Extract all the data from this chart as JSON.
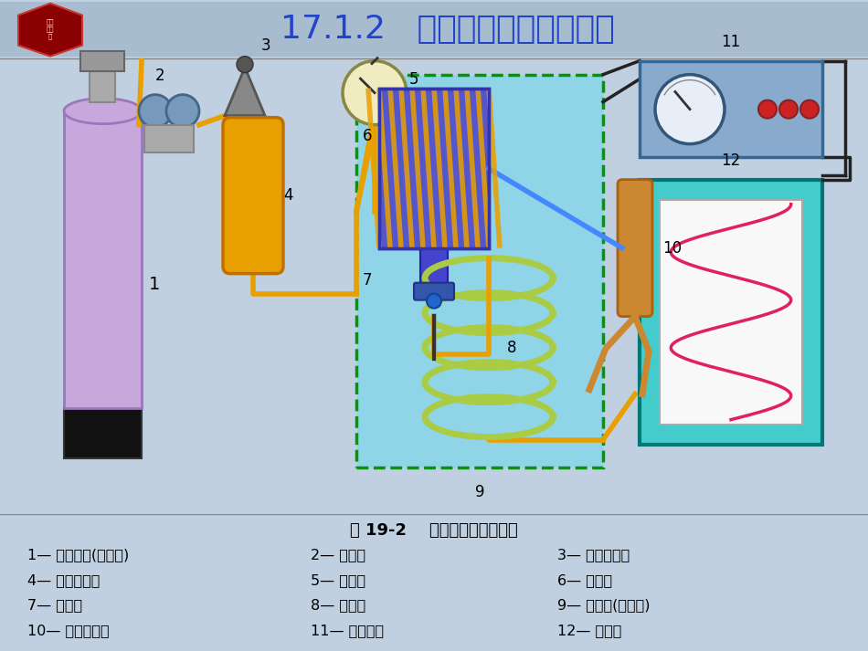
{
  "title": "17.1.2   气相色谱仪的一般流程",
  "title_color": "#2244CC",
  "bg_color": "#C0D0E0",
  "header_bg": "#A8BCD0",
  "diagram_bg": "#D8E4EE",
  "legend_bg": "#D8E0E8",
  "legend_title": "图 19-2    气相色谱流程示意图",
  "legend_items": [
    [
      "1— 高压气瓶(载气源)",
      "2— 减压阀",
      "3— 气流调节阀"
    ],
    [
      "4— 净化干燥管",
      "5— 压力表",
      "6— 热导池"
    ],
    [
      "7— 进样口",
      "8— 色谱柱",
      "9— 恒温箱(虚线内)"
    ],
    [
      "10— 皂膜流量计",
      "11— 测量电桥",
      "12— 记录仪"
    ]
  ],
  "colors": {
    "tank_body": "#C8A8DC",
    "pipe": "#E8A000",
    "pipe_blue": "#4488FF",
    "oven_bg": "#90D4E8",
    "dashed_border": "#009900",
    "detector_bg": "#5555CC",
    "column_coil": "#AACC44",
    "recorder_bg": "#44CCCC",
    "recorder_inner": "#F8F8F8",
    "recorder_curve": "#E02060",
    "meter_bg": "#88AACC",
    "flowmeter_color": "#CC6600"
  }
}
